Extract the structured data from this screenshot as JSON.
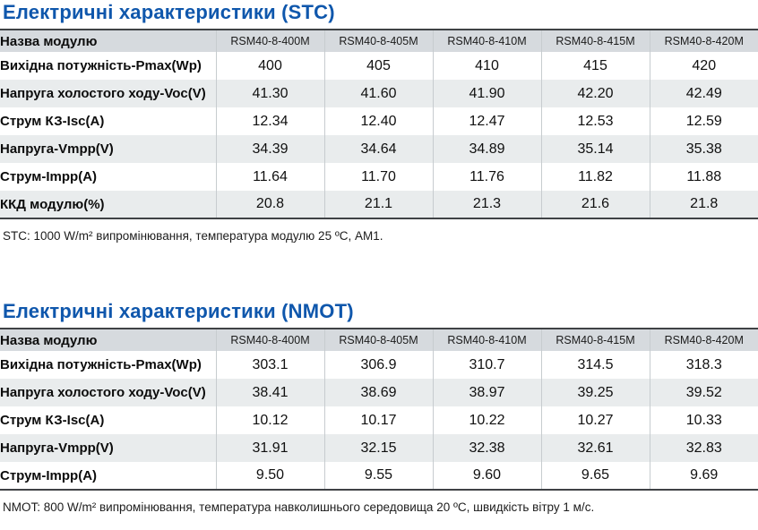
{
  "colors": {
    "title_blue": "#0f57ac",
    "header_bg": "#d6dade",
    "stripe_bg": "#e9eced",
    "border_dark": "#3f4245",
    "grid_line": "#c7cccf"
  },
  "sections": [
    {
      "id": "stc",
      "title": "Електричні характеристики (STC)",
      "name_header": "Назва модулю",
      "models": [
        "RSM40-8-400M",
        "RSM40-8-405M",
        "RSM40-8-410M",
        "RSM40-8-415M",
        "RSM40-8-420M"
      ],
      "rows": [
        {
          "label": "Вихідна потужність-Pmax(Wp)",
          "values": [
            "400",
            "405",
            "410",
            "415",
            "420"
          ]
        },
        {
          "label": "Напруга холостого ходу-Voc(V)",
          "values": [
            "41.30",
            "41.60",
            "41.90",
            "42.20",
            "42.49"
          ]
        },
        {
          "label": "Струм КЗ-Isc(A)",
          "values": [
            "12.34",
            "12.40",
            "12.47",
            "12.53",
            "12.59"
          ]
        },
        {
          "label": "Напруга-Vmpp(V)",
          "values": [
            "34.39",
            "34.64",
            "34.89",
            "35.14",
            "35.38"
          ]
        },
        {
          "label": "Струм-Impp(A)",
          "values": [
            "11.64",
            "11.70",
            "11.76",
            "11.82",
            "11.88"
          ]
        },
        {
          "label": "ККД модулю(%)",
          "values": [
            "20.8",
            "21.1",
            "21.3",
            "21.6",
            "21.8"
          ]
        }
      ],
      "note": "STC: 1000 W/m² випромінювання, температура модулю 25 ºС, AM1."
    },
    {
      "id": "nmot",
      "title": "Електричні характеристики (NMOT)",
      "name_header": "Назва модулю",
      "models": [
        "RSM40-8-400M",
        "RSM40-8-405M",
        "RSM40-8-410M",
        "RSM40-8-415M",
        "RSM40-8-420M"
      ],
      "rows": [
        {
          "label": "Вихідна потужність-Pmax(Wp)",
          "values": [
            "303.1",
            "306.9",
            "310.7",
            "314.5",
            "318.3"
          ]
        },
        {
          "label": "Напруга холостого ходу-Voc(V)",
          "values": [
            "38.41",
            "38.69",
            "38.97",
            "39.25",
            "39.52"
          ]
        },
        {
          "label": "Струм КЗ-Isc(A)",
          "values": [
            "10.12",
            "10.17",
            "10.22",
            "10.27",
            "10.33"
          ]
        },
        {
          "label": "Напруга-Vmpp(V)",
          "values": [
            "31.91",
            "32.15",
            "32.38",
            "32.61",
            "32.83"
          ]
        },
        {
          "label": "Струм-Impp(A)",
          "values": [
            "9.50",
            "9.55",
            "9.60",
            "9.65",
            "9.69"
          ]
        }
      ],
      "note": "NMOT: 800 W/m² випромінювання, температура навколишнього середовища 20 ºС, швидкість вітру 1 м/с."
    }
  ]
}
